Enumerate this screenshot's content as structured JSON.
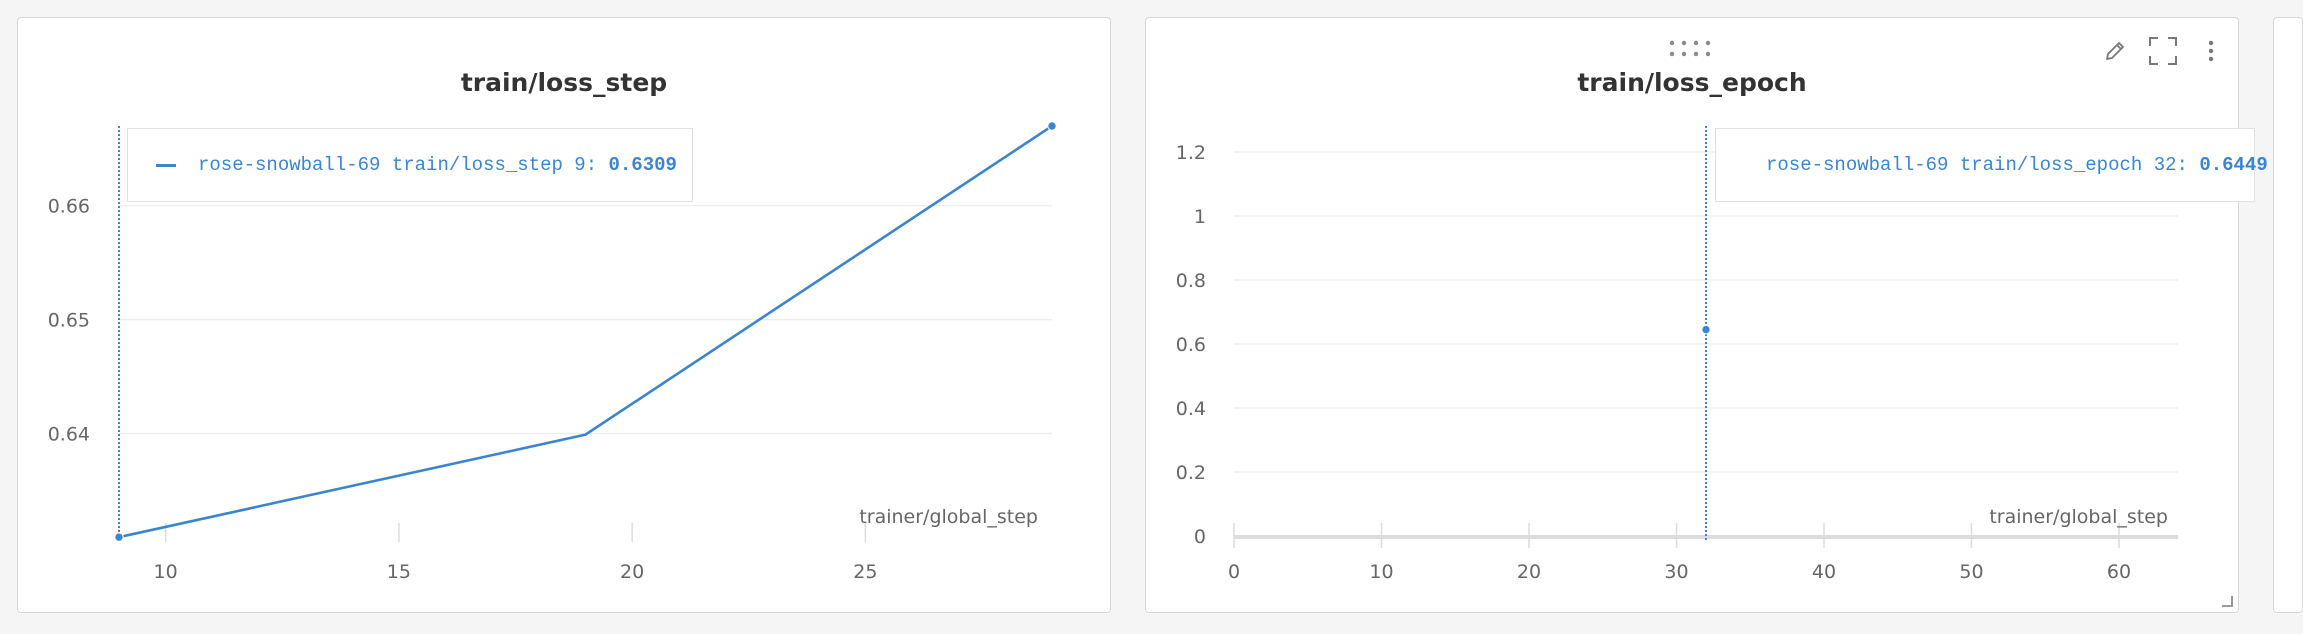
{
  "colors": {
    "series": "#3b85cf",
    "grid": "#ececec",
    "hover_line": "#3b85cf"
  },
  "panels": [
    {
      "id": "left",
      "title": "train/loss_step",
      "tooltip": {
        "run": "rose-snowball-69",
        "metric": "train/loss_step",
        "step": "9",
        "value": "0.6309"
      },
      "tools": []
    },
    {
      "id": "right",
      "title": "train/loss_epoch",
      "tooltip": {
        "run": "rose-snowball-69",
        "metric": "train/loss_epoch",
        "step": "32",
        "value": "0.6449"
      },
      "tools": [
        "pencil-icon",
        "fullscreen-icon",
        "more-vertical-icon"
      ]
    }
  ],
  "chart_data": [
    {
      "type": "line",
      "title": "train/loss_step",
      "xlabel": "trainer/global_step",
      "ylabel": "",
      "xlim": [
        9,
        29
      ],
      "ylim": [
        0.631,
        0.667
      ],
      "xticks": [
        10,
        15,
        20,
        25
      ],
      "yticks": [
        0.64,
        0.65,
        0.66
      ],
      "ytick_labels": [
        "0.64",
        "0.65",
        "0.66"
      ],
      "grid": true,
      "series": [
        {
          "name": "rose-snowball-69",
          "x": [
            9,
            19,
            29
          ],
          "y": [
            0.6309,
            0.6399,
            0.667
          ]
        }
      ],
      "hover_x": 9
    },
    {
      "type": "line",
      "title": "train/loss_epoch",
      "xlabel": "trainer/global_step",
      "ylabel": "",
      "xlim": [
        0,
        64
      ],
      "ylim": [
        0,
        1.2
      ],
      "xticks": [
        0,
        10,
        20,
        30,
        40,
        50,
        60
      ],
      "yticks": [
        0,
        0.2,
        0.4,
        0.6,
        0.8,
        1,
        1.2
      ],
      "ytick_labels": [
        "0",
        "0.2",
        "0.4",
        "0.6",
        "0.8",
        "1",
        "1.2"
      ],
      "grid": true,
      "series": [
        {
          "name": "rose-snowball-69",
          "x": [
            32
          ],
          "y": [
            0.6449
          ]
        }
      ],
      "hover_x": 32
    }
  ]
}
